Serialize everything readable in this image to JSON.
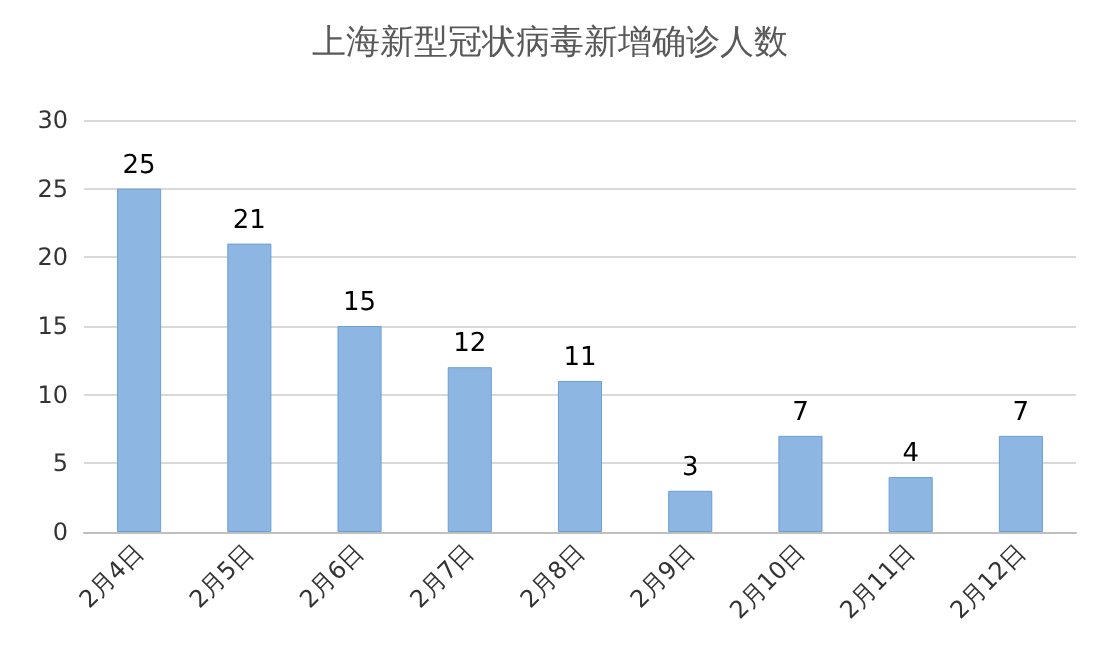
{
  "chart_data": {
    "type": "bar",
    "title": "上海新型冠状病毒新增确诊人数",
    "categories": [
      "2月4日",
      "2月5日",
      "2月6日",
      "2月7日",
      "2月8日",
      "2月9日",
      "2月10日",
      "2月11日",
      "2月12日"
    ],
    "values": [
      25,
      21,
      15,
      12,
      11,
      3,
      7,
      4,
      7
    ],
    "color": "#8db7e2",
    "ylim": [
      0,
      30
    ],
    "yticks": [
      0,
      5,
      10,
      15,
      20,
      25,
      30
    ],
    "grid": "y",
    "data_labels": true
  }
}
